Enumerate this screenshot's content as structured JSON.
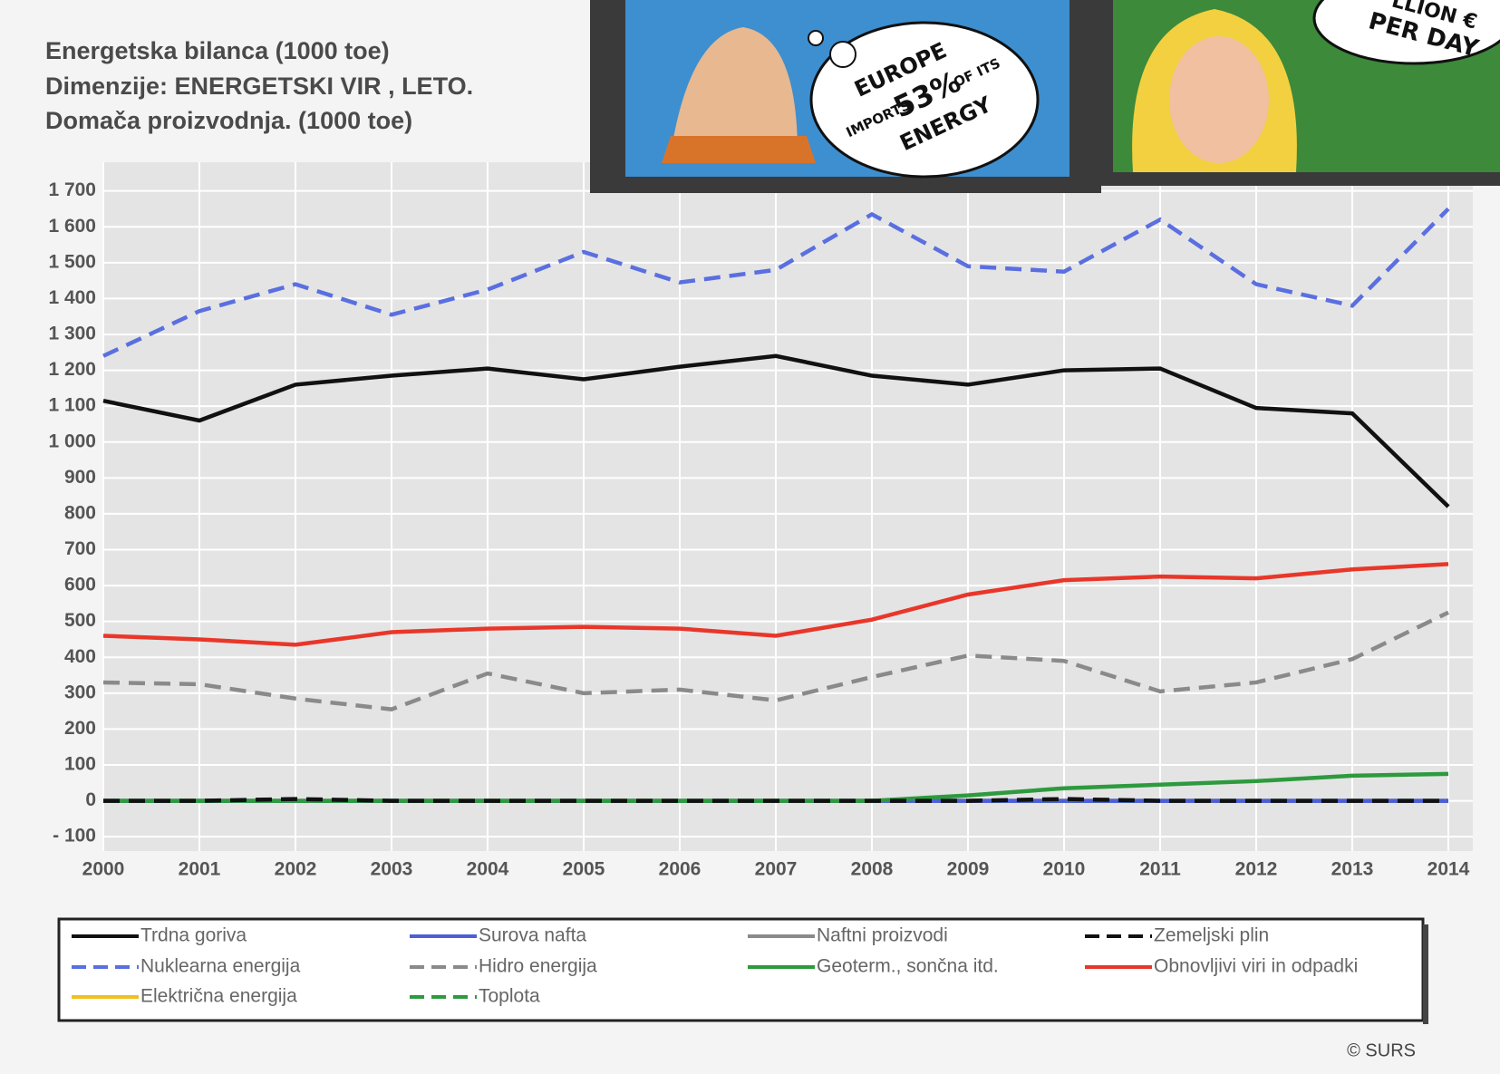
{
  "chart_data": {
    "type": "line",
    "title": [
      "Energetska bilanca (1000 toe)",
      "Dimenzije: ENERGETSKI VIR , LETO.",
      "Domača proizvodnja. (1000 toe)"
    ],
    "x": [
      2000,
      2001,
      2002,
      2003,
      2004,
      2005,
      2006,
      2007,
      2008,
      2009,
      2010,
      2011,
      2012,
      2013,
      2014
    ],
    "xlim": [
      2000,
      2014
    ],
    "ylim": [
      -140,
      1780
    ],
    "yticks": [
      {
        "value": -100,
        "label": "- 100"
      },
      0,
      100,
      200,
      300,
      400,
      500,
      600,
      700,
      800,
      900,
      {
        "value": 1000,
        "label": "1 000"
      },
      {
        "value": 1100,
        "label": "1 100"
      },
      {
        "value": 1200,
        "label": "1 200"
      },
      {
        "value": 1300,
        "label": "1 300"
      },
      {
        "value": 1400,
        "label": "1 400"
      },
      {
        "value": 1500,
        "label": "1 500"
      },
      {
        "value": 1600,
        "label": "1 600"
      },
      {
        "value": 1700,
        "label": "1 700"
      }
    ],
    "grid": true,
    "series": [
      {
        "name": "Trdna goriva",
        "color": "#111111",
        "dashed": false,
        "values": [
          1115,
          1060,
          1160,
          1185,
          1205,
          1175,
          1210,
          1240,
          1185,
          1160,
          1200,
          1205,
          1095,
          1080,
          820
        ]
      },
      {
        "name": "Surova nafta",
        "color": "#4a5fd8",
        "dashed": false,
        "values": [
          0,
          0,
          0,
          0,
          0,
          0,
          0,
          0,
          0,
          0,
          0,
          0,
          0,
          0,
          0
        ]
      },
      {
        "name": "Naftni proizvodi",
        "color": "#8a8a8a",
        "dashed": false,
        "values": [
          0,
          0,
          0,
          0,
          0,
          0,
          0,
          0,
          0,
          0,
          0,
          0,
          0,
          0,
          0
        ]
      },
      {
        "name": "Zemeljski plin",
        "color": "#111111",
        "dashed": true,
        "values": [
          0,
          0,
          5,
          0,
          0,
          0,
          0,
          0,
          0,
          0,
          5,
          0,
          0,
          0,
          0
        ]
      },
      {
        "name": "Nuklearna energija",
        "color": "#5a6fe0",
        "dashed": true,
        "values": [
          1240,
          1365,
          1440,
          1355,
          1425,
          1530,
          1445,
          1480,
          1635,
          1490,
          1475,
          1620,
          1440,
          1380,
          1650
        ]
      },
      {
        "name": "Hidro energija",
        "color": "#8a8a8a",
        "dashed": true,
        "values": [
          330,
          325,
          285,
          255,
          355,
          300,
          310,
          280,
          345,
          405,
          390,
          305,
          330,
          395,
          525
        ]
      },
      {
        "name": "Geoterm., sončna itd.",
        "color": "#2e9a3e",
        "dashed": false,
        "values": [
          0,
          0,
          0,
          0,
          0,
          0,
          0,
          0,
          0,
          15,
          35,
          45,
          55,
          70,
          75
        ]
      },
      {
        "name": "Obnovljivi viri in odpadki",
        "color": "#e8372a",
        "dashed": false,
        "values": [
          460,
          450,
          435,
          470,
          480,
          485,
          480,
          460,
          505,
          575,
          615,
          625,
          620,
          645,
          660
        ]
      },
      {
        "name": "Električna energija",
        "color": "#f0c020",
        "dashed": false,
        "values": [
          0,
          0,
          0,
          0,
          0,
          0,
          0,
          0,
          0,
          0,
          0,
          0,
          0,
          0,
          0
        ]
      },
      {
        "name": "Toplota",
        "color": "#2e9a3e",
        "dashed": true,
        "values": [
          0,
          0,
          0,
          0,
          0,
          0,
          0,
          0,
          0,
          0,
          0,
          0,
          0,
          0,
          0
        ]
      }
    ],
    "source": "© SURS",
    "annotations": [
      "EUROPE",
      "IMPORTS",
      "53%",
      "OF ITS",
      "ENERGY",
      "LLION €",
      "PER DAY"
    ]
  }
}
